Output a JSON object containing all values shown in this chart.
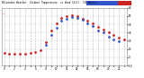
{
  "title": "Milwaukee Weather  Outdoor Temperature  vs Wind Chill  (24 Hours)",
  "background_color": "#ffffff",
  "plot_bg_color": "#ffffff",
  "grid_color": "#aaaaaa",
  "hours": [
    0,
    1,
    2,
    3,
    4,
    5,
    6,
    7,
    8,
    9,
    10,
    11,
    12,
    13,
    14,
    15,
    16,
    17,
    18,
    19,
    20,
    21,
    22,
    23
  ],
  "temp_red": [
    5,
    4,
    4,
    4,
    4,
    5,
    6,
    9,
    18,
    32,
    41,
    48,
    50,
    51,
    50,
    47,
    44,
    41,
    37,
    34,
    30,
    27,
    24,
    22
  ],
  "wind_chill_blue": [
    null,
    null,
    null,
    null,
    null,
    null,
    null,
    null,
    15,
    27,
    36,
    44,
    47,
    49,
    48,
    45,
    41,
    38,
    33,
    30,
    25,
    22,
    19,
    null
  ],
  "ylim": [
    -10,
    60
  ],
  "ytick_vals": [
    -10,
    0,
    10,
    20,
    30,
    40,
    50,
    60
  ],
  "ytick_labels": [
    "-10",
    "0",
    "10",
    "20",
    "30",
    "40",
    "50",
    "60"
  ],
  "legend_bar_blue": "#3355cc",
  "legend_bar_red": "#cc2222",
  "text_color": "#000000",
  "spine_color": "#888888"
}
